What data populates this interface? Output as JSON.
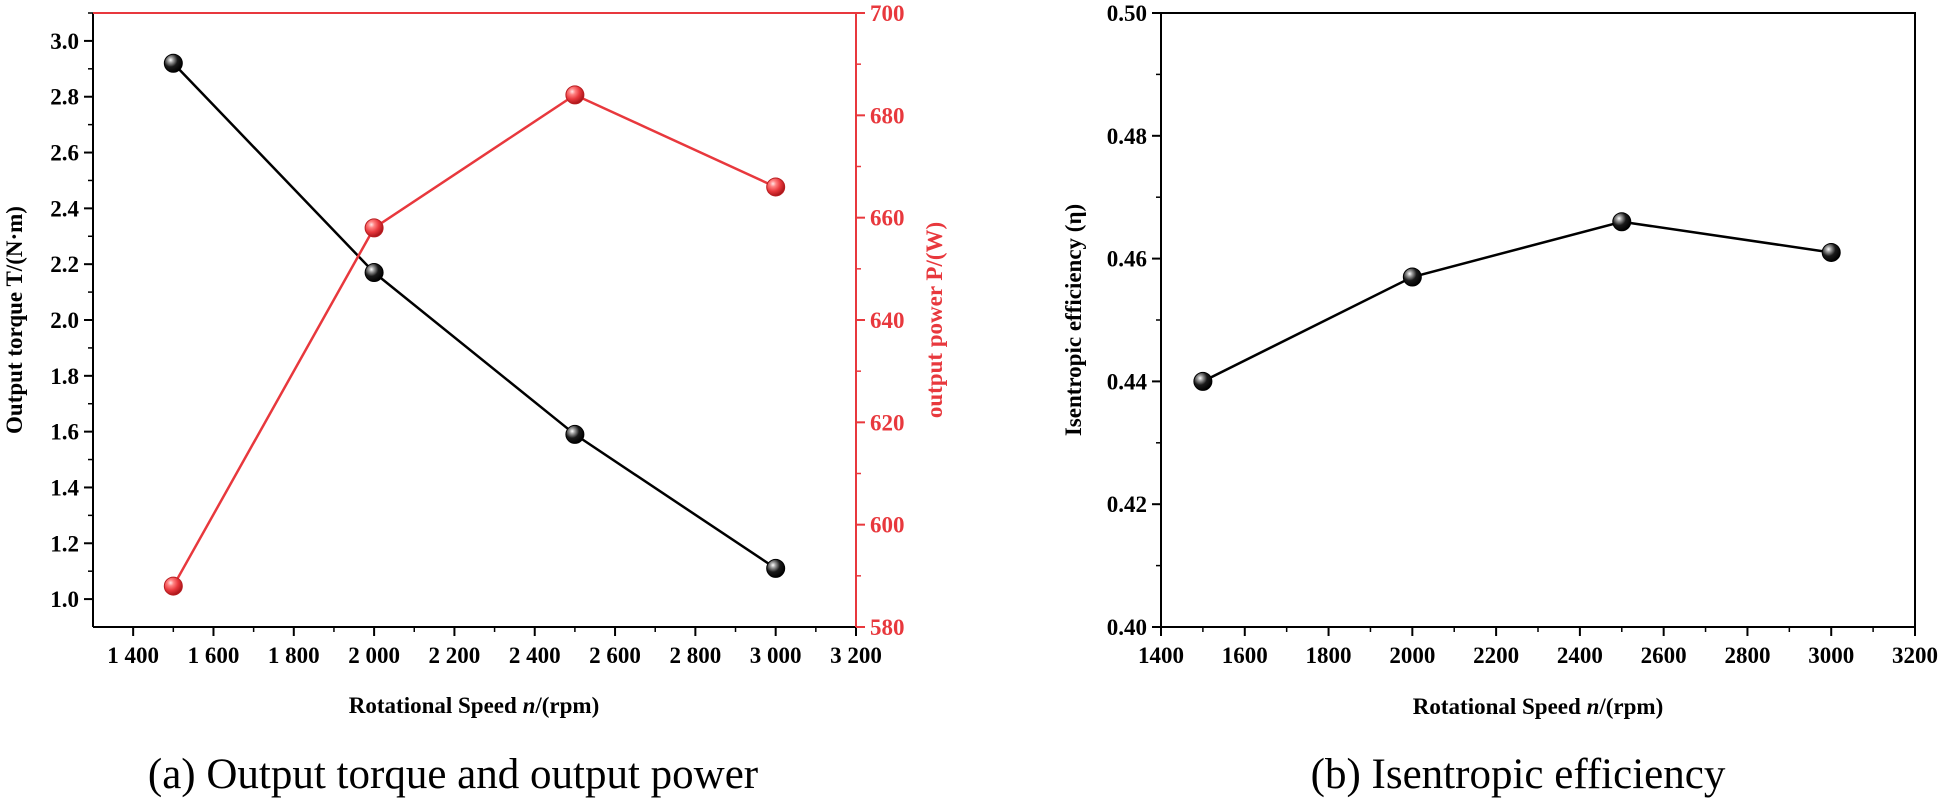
{
  "colors": {
    "torque": "#000000",
    "power": "#e8383d",
    "axis": "#000000"
  },
  "chart_data": [
    {
      "type": "line",
      "caption": "(a) Output torque and output power",
      "xlabel_prefix": "Rotational Speed ",
      "xlabel_var": "n",
      "xlabel_suffix": "/(rpm)",
      "ylabel_left": "Output torque T/(N·m)",
      "ylabel_right": "output power P/(W)",
      "xlim": [
        1300,
        3200
      ],
      "ylim_left": [
        0.9,
        3.1
      ],
      "ylim_right": [
        580,
        700
      ],
      "x_ticks": [
        1400,
        1600,
        1800,
        2000,
        2200,
        2400,
        2600,
        2800,
        3000,
        3200
      ],
      "x_tick_labels": [
        "1 400",
        "1 600",
        "1 800",
        "2 000",
        "2 200",
        "2 400",
        "2 600",
        "2 800",
        "3 000",
        "3 200"
      ],
      "y_left_ticks": [
        1.0,
        1.2,
        1.4,
        1.6,
        1.8,
        2.0,
        2.2,
        2.4,
        2.6,
        2.8,
        3.0
      ],
      "y_left_tick_labels": [
        "1.0",
        "1.2",
        "1.4",
        "1.6",
        "1.8",
        "2.0",
        "2.2",
        "2.4",
        "2.6",
        "2.8",
        "3.0"
      ],
      "y_right_ticks": [
        580,
        600,
        620,
        640,
        660,
        680,
        700
      ],
      "y_right_tick_labels": [
        "580",
        "600",
        "620",
        "640",
        "660",
        "680",
        "700"
      ],
      "series": [
        {
          "name": "Output torque",
          "axis": "left",
          "x": [
            1500,
            2000,
            2500,
            3000
          ],
          "values": [
            2.92,
            2.17,
            1.59,
            1.11
          ]
        },
        {
          "name": "Output power",
          "axis": "right",
          "x": [
            1500,
            2000,
            2500,
            3000
          ],
          "values": [
            588,
            658,
            684,
            666
          ]
        }
      ]
    },
    {
      "type": "line",
      "caption": "(b) Isentropic efficiency",
      "xlabel_prefix": "Rotational Speed ",
      "xlabel_var": "n",
      "xlabel_suffix": "/(rpm)",
      "ylabel": "Isentropic efficiency (η)",
      "xlim": [
        1400,
        3200
      ],
      "ylim": [
        0.4,
        0.5
      ],
      "x_ticks": [
        1400,
        1600,
        1800,
        2000,
        2200,
        2400,
        2600,
        2800,
        3000,
        3200
      ],
      "x_tick_labels": [
        "1400",
        "1600",
        "1800",
        "2000",
        "2200",
        "2400",
        "2600",
        "2800",
        "3000",
        "3200"
      ],
      "y_ticks": [
        0.4,
        0.42,
        0.44,
        0.46,
        0.48,
        0.5
      ],
      "y_tick_labels": [
        "0.40",
        "0.42",
        "0.44",
        "0.46",
        "0.48",
        "0.50"
      ],
      "series": [
        {
          "name": "Isentropic efficiency",
          "x": [
            1500,
            2000,
            2500,
            3000
          ],
          "values": [
            0.44,
            0.457,
            0.466,
            0.461
          ]
        }
      ]
    }
  ]
}
